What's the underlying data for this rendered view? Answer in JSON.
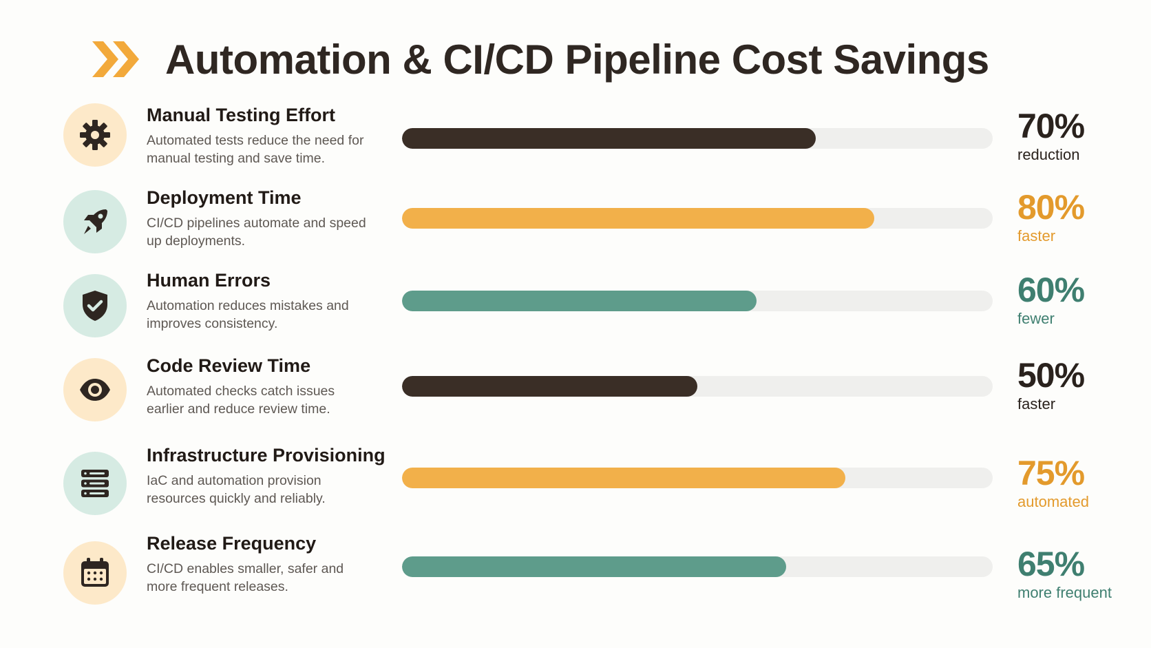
{
  "header": {
    "title": "Automation & CI/CD Pipeline Cost Savings",
    "icon": "double-chevron-right-icon",
    "icon_color": "#f2a93b"
  },
  "colors": {
    "dark": "#3a2e26",
    "orange": "#f2b04a",
    "teal": "#5e9c8b",
    "track": "#efefed",
    "icon_bg_orange": "#fde9c9",
    "icon_bg_teal": "#d6ebe3"
  },
  "chart_data": {
    "type": "bar",
    "orientation": "horizontal",
    "xlim": [
      0,
      100
    ],
    "categories": [
      "Manual Testing Effort",
      "Deployment Time",
      "Human Errors",
      "Code Review Time",
      "Infrastructure Provisioning",
      "Release Frequency"
    ],
    "values": [
      70,
      80,
      60,
      50,
      75,
      65
    ],
    "value_labels": [
      "70%",
      "80%",
      "60%",
      "50%",
      "75%",
      "65%"
    ],
    "units": [
      "reduction",
      "faster",
      "fewer",
      "faster",
      "automated",
      "more frequent"
    ]
  },
  "rows": [
    {
      "title": "Manual Testing Effort",
      "desc": "Automated tests reduce the need for manual testing and save time.",
      "value": 70,
      "pct": "70%",
      "unit": "reduction",
      "color": "#3a2e26",
      "label_color": "#2a221d",
      "icon": "gear-icon",
      "icon_bg": "#fde9c9"
    },
    {
      "title": "Deployment Time",
      "desc": "CI/CD pipelines automate and speed up deployments.",
      "value": 80,
      "pct": "80%",
      "unit": "faster",
      "color": "#f2b04a",
      "label_color": "#e39a2c",
      "icon": "rocket-icon",
      "icon_bg": "#d6ebe3"
    },
    {
      "title": "Human Errors",
      "desc": "Automation reduces mistakes and improves consistency.",
      "value": 60,
      "pct": "60%",
      "unit": "fewer",
      "color": "#5e9c8b",
      "label_color": "#3f7f70",
      "icon": "shield-check-icon",
      "icon_bg": "#d6ebe3"
    },
    {
      "title": "Code Review Time",
      "desc": "Automated checks catch issues earlier and reduce review time.",
      "value": 50,
      "pct": "50%",
      "unit": "faster",
      "color": "#3a2e26",
      "label_color": "#2a221d",
      "icon": "eye-icon",
      "icon_bg": "#fde9c9"
    },
    {
      "title": "Infrastructure Provisioning",
      "desc": "IaC and automation provision resources quickly and reliably.",
      "value": 75,
      "pct": "75%",
      "unit": "automated",
      "color": "#f2b04a",
      "label_color": "#e39a2c",
      "icon": "server-stack-icon",
      "icon_bg": "#d6ebe3"
    },
    {
      "title": "Release Frequency",
      "desc": "CI/CD enables smaller, safer and more frequent releases.",
      "value": 65,
      "pct": "65%",
      "unit": "more frequent",
      "color": "#5e9c8b",
      "label_color": "#3f7f70",
      "icon": "calendar-icon",
      "icon_bg": "#fde9c9"
    }
  ]
}
